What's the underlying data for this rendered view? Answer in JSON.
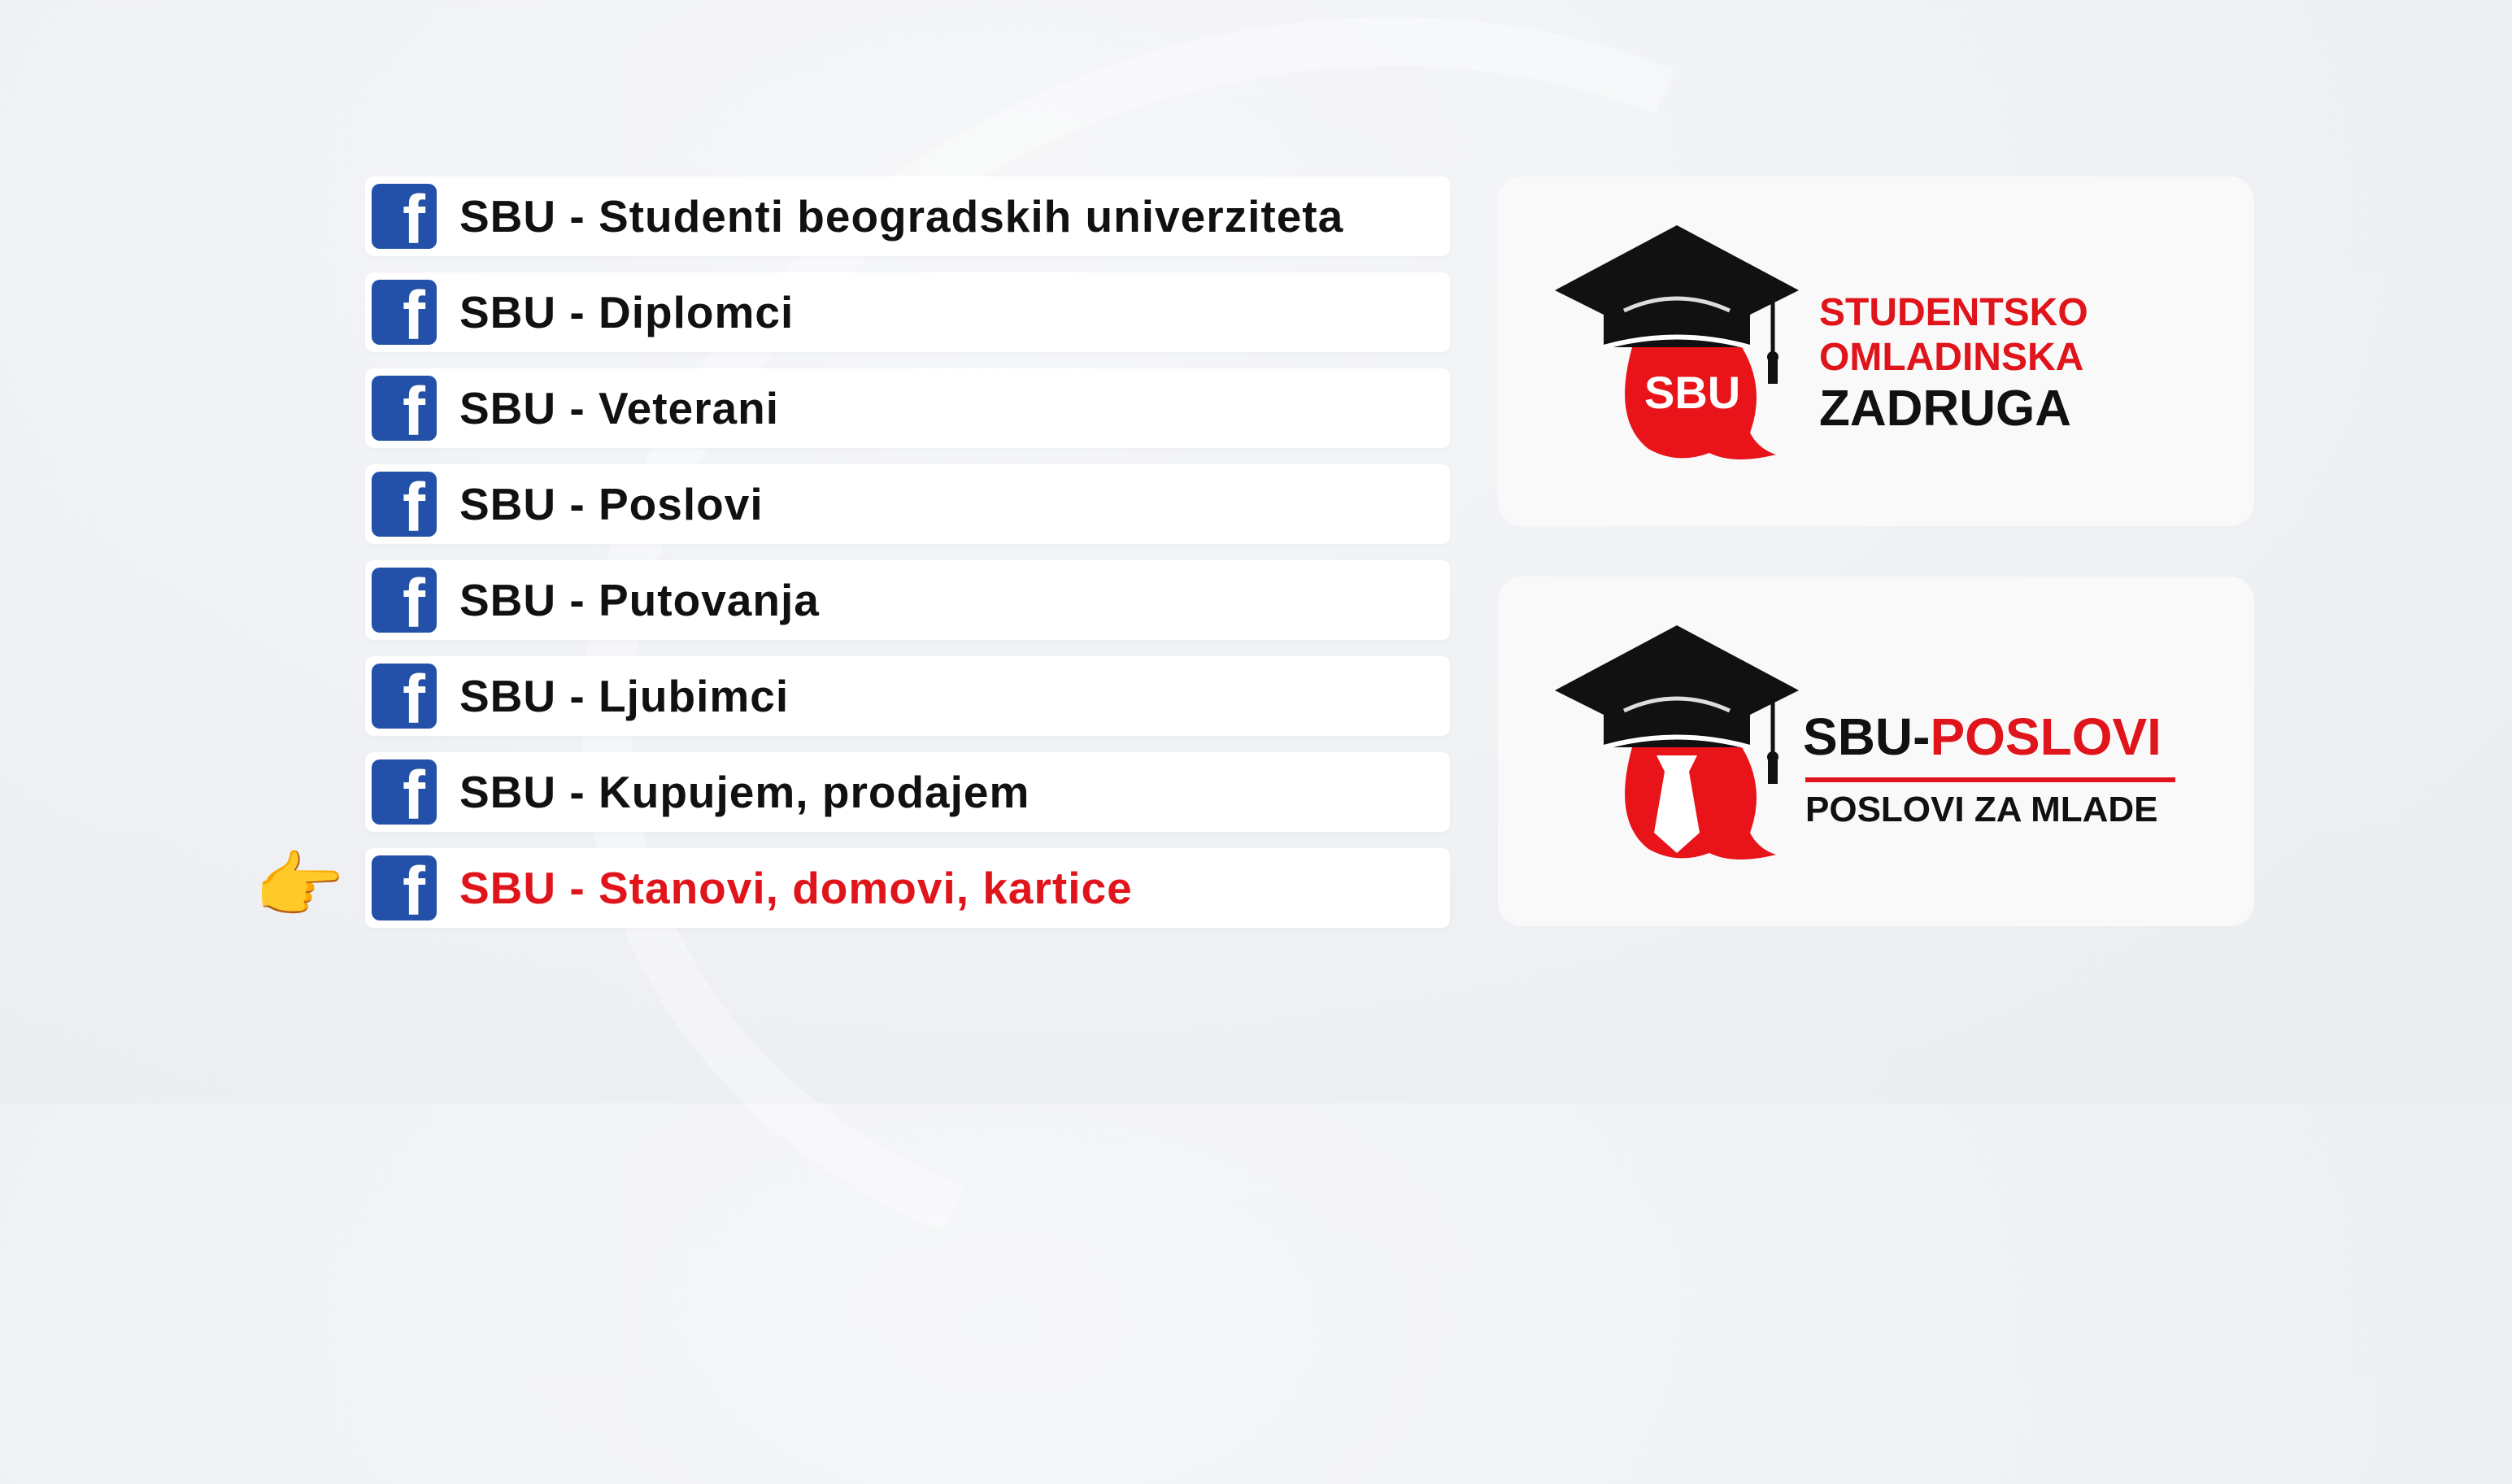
{
  "groups": [
    {
      "label": "SBU - Studenti beogradskih univerziteta",
      "icon": "facebook-icon"
    },
    {
      "label": "SBU - Diplomci",
      "icon": "facebook-icon"
    },
    {
      "label": "SBU - Veterani",
      "icon": "facebook-icon"
    },
    {
      "label": "SBU - Poslovi",
      "icon": "facebook-icon"
    },
    {
      "label": "SBU - Putovanja",
      "icon": "facebook-icon"
    },
    {
      "label": "SBU - Ljubimci",
      "icon": "facebook-icon"
    },
    {
      "label": "SBU - Kupujem, prodajem",
      "icon": "facebook-icon"
    },
    {
      "label": "SBU - Stanovi, domovi, kartice",
      "icon": "facebook-icon",
      "highlighted": true
    }
  ],
  "pointer": "👉",
  "fb_glyph": "f",
  "logos": {
    "zadruga": {
      "badge": "SBU",
      "line1": "STUDENTSKO",
      "line2": "OMLADINSKA",
      "line3": "ZADRUGA"
    },
    "poslovi": {
      "title_a": "SBU-",
      "title_b": "POSLOVI",
      "subtitle": "POSLOVI ZA MLADE"
    }
  },
  "colors": {
    "accent_red": "#e0141b",
    "facebook_blue": "#2350a8",
    "text": "#111111"
  }
}
